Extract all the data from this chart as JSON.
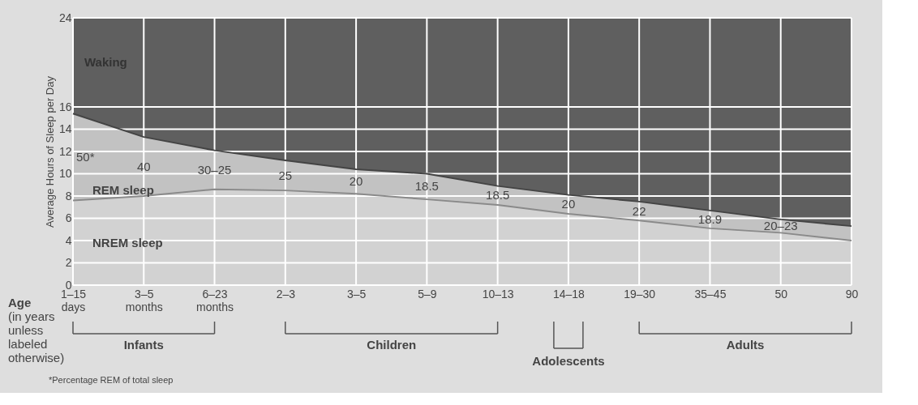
{
  "chart_data": {
    "type": "area",
    "stacked": true,
    "ylabel": "Average Hours of Sleep per Day",
    "xlabel": "Age (in years unless labeled otherwise)",
    "categories": [
      "1–15 days",
      "3–5 months",
      "6–23 months",
      "2–3",
      "3–5",
      "5–9",
      "10–13",
      "14–18",
      "19–30",
      "35–45",
      "50",
      "90"
    ],
    "series": [
      {
        "name": "NREM sleep",
        "color": "#d2d2d2",
        "values": [
          7.6,
          8.0,
          8.6,
          8.5,
          8.2,
          7.7,
          7.2,
          6.4,
          5.8,
          5.1,
          4.7,
          4.0
        ]
      },
      {
        "name": "REM sleep",
        "color": "#c2c2c2",
        "values": [
          7.8,
          5.3,
          3.5,
          2.7,
          2.2,
          2.3,
          1.7,
          1.7,
          1.7,
          1.6,
          1.2,
          1.3
        ]
      }
    ],
    "bands": [
      {
        "axis": "y",
        "from": 0,
        "to": 24,
        "label": "Waking",
        "color": "#5f5f5f"
      }
    ],
    "ylim": [
      0,
      24
    ],
    "yticks": [
      0,
      2,
      4,
      6,
      8,
      10,
      12,
      14,
      16,
      24
    ],
    "grid": true,
    "annotations": [
      "50*",
      "40",
      "30–25",
      "25",
      "20",
      "18.5",
      "18.5",
      "20",
      "22",
      "18.9",
      "20–23",
      "Infants",
      "Children",
      "Adolescents",
      "Adults",
      "*Percentage REM of total sleep"
    ]
  }
}
